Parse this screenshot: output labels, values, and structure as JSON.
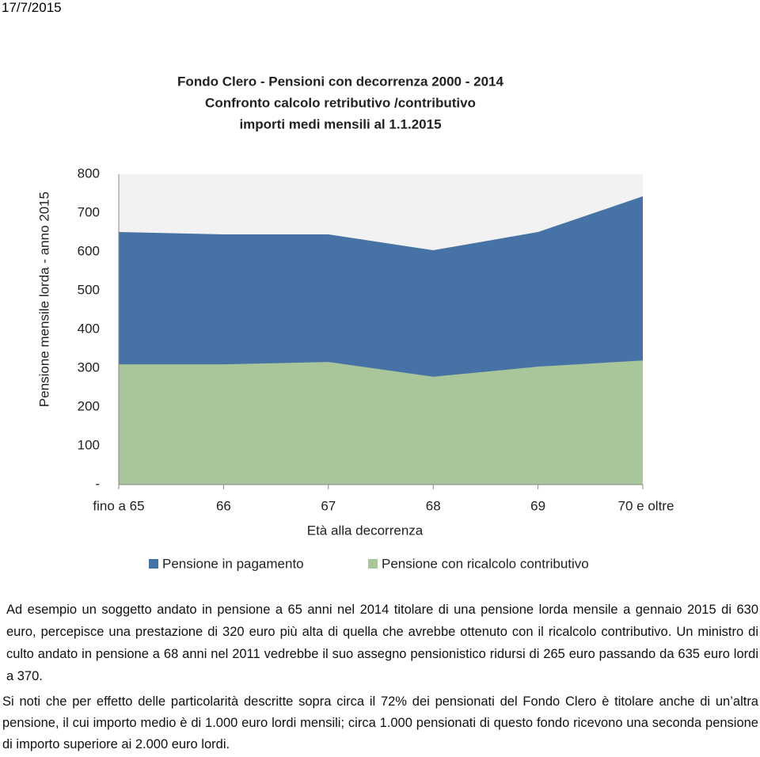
{
  "header": {
    "date": "17/7/2015"
  },
  "chart_data": {
    "type": "area",
    "title": [
      "Fondo Clero - Pensioni con decorrenza 2000 - 2014",
      "Confronto calcolo retributivo /contributivo",
      "importi medi mensili al 1.1.2015"
    ],
    "x_label": "Età alla decorrenza",
    "y_label": "Pensione mensile lorda - anno 2015",
    "categories": [
      "fino a 65",
      "66",
      "67",
      "68",
      "69",
      "70 e oltre"
    ],
    "series": [
      {
        "name": "Pensione in pagamento",
        "color": "#4672a6",
        "values": [
          651,
          645,
          645,
          604,
          651,
          743
        ]
      },
      {
        "name": "Pensione con ricalcolo contributivo",
        "color": "#a9c59a",
        "values": [
          310,
          310,
          316,
          278,
          304,
          320
        ]
      }
    ],
    "ylim": [
      0,
      800
    ],
    "yticks": [
      {
        "value": 0,
        "label": "-"
      },
      100,
      200,
      300,
      400,
      500,
      600,
      700,
      800
    ],
    "plot_background": "#f2f2f2"
  },
  "paragraphs": [
    "Ad esempio un soggetto andato in pensione a 65 anni nel 2014 titolare di una pensione lorda mensile a gennaio 2015 di 630  euro, percepisce una prestazione di 320 euro più alta di quella che avrebbe ottenuto con il ricalcolo contributivo. Un ministro di culto andato in pensione a 68 anni nel 2011 vedrebbe il suo assegno pensionistico ridursi di 265 euro passando da 635 euro lordi a 370.",
    "Si noti che per effetto delle particolarità descritte sopra circa il 72% dei pensionati del Fondo Clero è titolare anche di un’altra pensione, il cui importo medio è di 1.000 euro lordi mensili; circa 1.000 pensionati di questo fondo ricevono una seconda pensione di importo superiore ai 2.000 euro lordi."
  ]
}
